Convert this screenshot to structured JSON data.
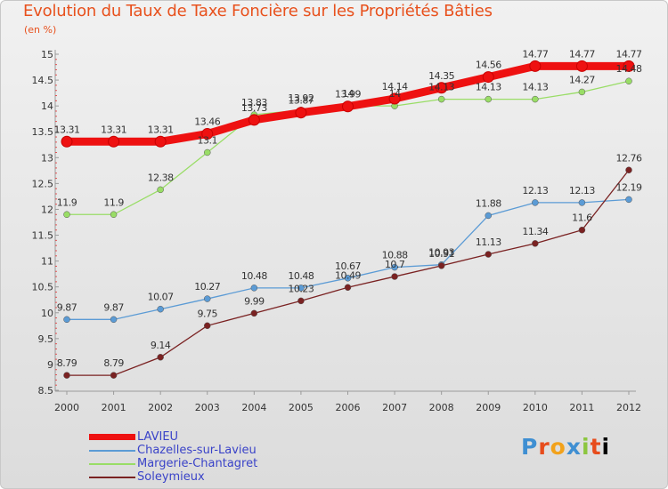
{
  "header": {
    "title": "Evolution du Taux de Taxe Foncière sur les Propriétés Bâties",
    "subtitle": "(en %)"
  },
  "logo": {
    "text": "Proxiti"
  },
  "colors": {
    "title": "#e8511d",
    "legend_text": "#3a43c8",
    "lavieu": "#ee1111",
    "chazelles": "#5b9bd5",
    "margerie": "#99dd66",
    "soleymieux": "#7a2222"
  },
  "chart_data": {
    "type": "line",
    "title": "Evolution du Taux de Taxe Foncière sur les Propriétés Bâties",
    "ylabel": "(en %)",
    "xlabel": "",
    "categories": [
      "2000",
      "2001",
      "2002",
      "2003",
      "2004",
      "2005",
      "2006",
      "2007",
      "2008",
      "2009",
      "2010",
      "2011",
      "2012"
    ],
    "ylim": [
      8.5,
      15
    ],
    "yticks": [
      "8.5",
      "9",
      "9.5",
      "10",
      "10.5",
      "11",
      "11.5",
      "12",
      "12.5",
      "13",
      "13.5",
      "14",
      "14.5",
      "15"
    ],
    "grid": false,
    "legend_position": "bottom-left",
    "series": [
      {
        "name": "LAVIEU",
        "color": "#ee1111",
        "values": [
          13.31,
          13.31,
          13.31,
          13.46,
          13.73,
          13.87,
          13.99,
          14.14,
          14.35,
          14.56,
          14.77,
          14.77,
          14.77
        ],
        "labels": [
          "13.31",
          "13.31",
          "13.31",
          "13.46",
          "13.73",
          "13.87",
          "13.99",
          "14.14",
          "14.35",
          "14.56",
          "14.77",
          "14.77",
          "14.77"
        ]
      },
      {
        "name": "Chazelles-sur-Lavieu",
        "color": "#5b9bd5",
        "values": [
          9.87,
          9.87,
          10.07,
          10.27,
          10.48,
          10.48,
          10.67,
          10.88,
          10.93,
          11.88,
          12.13,
          12.13,
          12.19
        ],
        "labels": [
          "9.87",
          "9.87",
          "10.07",
          "10.27",
          "10.48",
          "10.48",
          "10.67",
          "10.88",
          "10.93",
          "11.88",
          "12.13",
          "12.13",
          "12.19"
        ]
      },
      {
        "name": "Margerie-Chantagret",
        "color": "#99dd66",
        "values": [
          11.9,
          11.9,
          12.38,
          13.1,
          13.83,
          13.92,
          14.0,
          14.0,
          14.13,
          14.13,
          14.13,
          14.27,
          14.48
        ],
        "labels": [
          "11.9",
          "11.9",
          "12.38",
          "13.1",
          "13.83",
          "13.92",
          "14",
          "14",
          "14.13",
          "14.13",
          "14.13",
          "14.27",
          "14.48"
        ]
      },
      {
        "name": "Soleymieux",
        "color": "#7a2222",
        "values": [
          8.79,
          8.79,
          9.14,
          9.75,
          9.99,
          10.23,
          10.49,
          10.7,
          10.91,
          11.13,
          11.34,
          11.6,
          12.76
        ],
        "labels": [
          "8.79",
          "8.79",
          "9.14",
          "9.75",
          "9.99",
          "10.23",
          "10.49",
          "10.7",
          "10.91",
          "11.13",
          "11.34",
          "11.6",
          "12.76"
        ]
      }
    ]
  }
}
